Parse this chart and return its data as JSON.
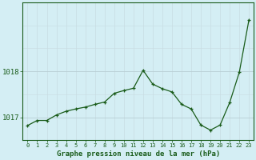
{
  "x": [
    0,
    1,
    2,
    3,
    4,
    5,
    6,
    7,
    8,
    9,
    10,
    11,
    12,
    13,
    14,
    15,
    16,
    17,
    18,
    19,
    20,
    21,
    22,
    23
  ],
  "y": [
    1016.82,
    1016.93,
    1016.93,
    1017.05,
    1017.13,
    1017.18,
    1017.22,
    1017.28,
    1017.33,
    1017.52,
    1017.58,
    1017.63,
    1018.02,
    1017.72,
    1017.62,
    1017.55,
    1017.28,
    1017.18,
    1016.83,
    1016.72,
    1016.83,
    1017.32,
    1017.98,
    1019.12
  ],
  "line_color": "#1a5c1a",
  "marker_color": "#1a5c1a",
  "bg_color": "#d4eef4",
  "grid_color_major": "#b8cdd4",
  "grid_color_minor": "#c8dce2",
  "xlabel": "Graphe pression niveau de la mer (hPa)",
  "xlabel_color": "#1a5c1a",
  "yticks": [
    1017,
    1018
  ],
  "ylim": [
    1016.5,
    1019.5
  ],
  "xlim": [
    -0.5,
    23.5
  ],
  "tick_color": "#1a5c1a",
  "axis_color": "#1a5c1a",
  "figsize": [
    3.2,
    2.0
  ],
  "dpi": 100
}
